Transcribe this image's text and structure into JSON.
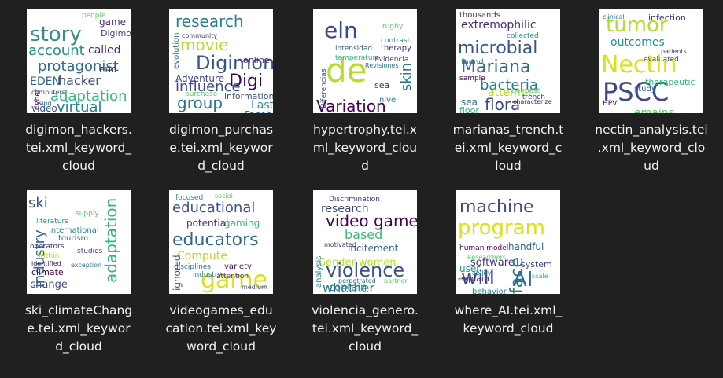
{
  "files": [
    {
      "label": "digimon_hackers.\ntei.xml_keyword_\ncloud",
      "words": [
        {
          "t": "story",
          "s": 26,
          "c": "#3b8a8c",
          "r": 0
        },
        {
          "t": "protagonist",
          "s": 18,
          "c": "#2c6e8e",
          "r": 0
        },
        {
          "t": "account",
          "s": 18,
          "c": "#21918c",
          "r": 0
        },
        {
          "t": "called",
          "s": 14,
          "c": "#482878",
          "r": 0
        },
        {
          "t": "hacker",
          "s": 16,
          "c": "#3e4a89",
          "r": 0
        },
        {
          "t": "EDEN",
          "s": 14,
          "c": "#31688e",
          "r": 0
        },
        {
          "t": "adaptation",
          "s": 18,
          "c": "#35b779",
          "r": 0
        },
        {
          "t": "virtual",
          "s": 18,
          "c": "#26828e",
          "r": 0
        },
        {
          "t": "game",
          "s": 12,
          "c": "#472c7a",
          "r": 0
        },
        {
          "t": "Digimon",
          "s": 11,
          "c": "#3e4989",
          "r": 0
        },
        {
          "t": "end",
          "s": 12,
          "c": "#482475",
          "r": 0
        },
        {
          "t": "video",
          "s": 12,
          "c": "#3b528b",
          "r": 0
        },
        {
          "t": "people",
          "s": 9,
          "c": "#5ec962",
          "r": 0
        },
        {
          "t": "Cyber",
          "s": 9,
          "c": "#440154",
          "r": -90
        },
        {
          "t": "computers",
          "s": 8,
          "c": "#3e4a89",
          "r": 0
        },
        {
          "t": "using",
          "s": 8,
          "c": "#31688e",
          "r": 0
        }
      ]
    },
    {
      "label": "digimon_purchas\ne.tei.xml_keywor\nd_cloud",
      "words": [
        {
          "t": "research",
          "s": 20,
          "c": "#26828e",
          "r": 0
        },
        {
          "t": "movie",
          "s": 20,
          "c": "#b5de2b",
          "r": 0
        },
        {
          "t": "Digimon",
          "s": 24,
          "c": "#3b528b",
          "r": 0
        },
        {
          "t": "Digi",
          "s": 22,
          "c": "#440154",
          "r": 0
        },
        {
          "t": "influence",
          "s": 18,
          "c": "#3e4a89",
          "r": 0
        },
        {
          "t": "group",
          "s": 20,
          "c": "#2a788e",
          "r": 0
        },
        {
          "t": "Adventure",
          "s": 12,
          "c": "#414487",
          "r": 0
        },
        {
          "t": "Last",
          "s": 14,
          "c": "#21918c",
          "r": 0
        },
        {
          "t": "Facebook",
          "s": 12,
          "c": "#31688e",
          "r": 0
        },
        {
          "t": "online",
          "s": 11,
          "c": "#472c7a",
          "r": 0
        },
        {
          "t": "information",
          "s": 11,
          "c": "#3b528b",
          "r": 0
        },
        {
          "t": "evolution",
          "s": 10,
          "c": "#2c728e",
          "r": -90
        },
        {
          "t": "purchase",
          "s": 9,
          "c": "#5ec962",
          "r": 0
        },
        {
          "t": "community",
          "s": 8,
          "c": "#482878",
          "r": 0
        }
      ]
    },
    {
      "label": "hypertrophy.tei.x\nml_keyword_clou\nd",
      "words": [
        {
          "t": "eln",
          "s": 28,
          "c": "#3e4a89",
          "r": 0
        },
        {
          "t": "de",
          "s": 42,
          "c": "#b5de2b",
          "r": 0
        },
        {
          "t": "Variation",
          "s": 20,
          "c": "#440154",
          "r": 0
        },
        {
          "t": "skin",
          "s": 18,
          "c": "#2a788e",
          "r": -90
        },
        {
          "t": "Diferencias",
          "s": 9,
          "c": "#3b528b",
          "r": -90
        },
        {
          "t": "intensidad",
          "s": 9,
          "c": "#31688e",
          "r": 0
        },
        {
          "t": "temperature",
          "s": 9,
          "c": "#35b779",
          "r": 0
        },
        {
          "t": "therapy",
          "s": 10,
          "c": "#472c7a",
          "r": 0
        },
        {
          "t": "contrast",
          "s": 9,
          "c": "#21918c",
          "r": 0
        },
        {
          "t": "Evidencia",
          "s": 9,
          "c": "#3e4989",
          "r": 0
        },
        {
          "t": "rugby",
          "s": 9,
          "c": "#5ec962",
          "r": 0
        },
        {
          "t": "sea",
          "s": 11,
          "c": "#482878",
          "r": 0
        },
        {
          "t": "nivel",
          "s": 10,
          "c": "#26828e",
          "r": 0
        },
        {
          "t": "Revisiones",
          "s": 8,
          "c": "#2c728e",
          "r": 0
        }
      ]
    },
    {
      "label": "marianas_trench.t\nei.xml_keyword_c\nloud",
      "words": [
        {
          "t": "extremophilic",
          "s": 14,
          "c": "#482878",
          "r": 0
        },
        {
          "t": "microbial",
          "s": 22,
          "c": "#3b528b",
          "r": 0
        },
        {
          "t": "Mariana",
          "s": 22,
          "c": "#31688e",
          "r": 0
        },
        {
          "t": "bacteria",
          "s": 18,
          "c": "#2a788e",
          "r": 0
        },
        {
          "t": "flora",
          "s": 20,
          "c": "#3e4a89",
          "r": 0
        },
        {
          "t": "attempt",
          "s": 14,
          "c": "#b5de2b",
          "r": 0
        },
        {
          "t": "thousands",
          "s": 10,
          "c": "#472c7a",
          "r": 0
        },
        {
          "t": "collected",
          "s": 9,
          "c": "#21918c",
          "r": 0
        },
        {
          "t": "found",
          "s": 10,
          "c": "#26828e",
          "r": 0
        },
        {
          "t": "sample",
          "s": 9,
          "c": "#440154",
          "r": 0
        },
        {
          "t": "deepest",
          "s": 9,
          "c": "#5ec962",
          "r": 0
        },
        {
          "t": "trench",
          "s": 9,
          "c": "#3e4989",
          "r": 0
        },
        {
          "t": "sea",
          "s": 12,
          "c": "#2c728e",
          "r": 0
        },
        {
          "t": "floor",
          "s": 11,
          "c": "#35b779",
          "r": 0
        },
        {
          "t": "characterize",
          "s": 8,
          "c": "#482475",
          "r": 0
        }
      ]
    },
    {
      "label": "nectin_analysis.tei\n.xml_keyword_clo\nud",
      "words": [
        {
          "t": "tumor",
          "s": 26,
          "c": "#b5de2b",
          "r": 0
        },
        {
          "t": "infection",
          "s": 11,
          "c": "#472c7a",
          "r": 0
        },
        {
          "t": "outcomes",
          "s": 14,
          "c": "#21918c",
          "r": 0
        },
        {
          "t": "Nectin",
          "s": 30,
          "c": "#d8e219",
          "r": 0
        },
        {
          "t": "PSCC",
          "s": 32,
          "c": "#3e4a89",
          "r": 0
        },
        {
          "t": "therapeutic",
          "s": 11,
          "c": "#35b779",
          "r": 0
        },
        {
          "t": "study",
          "s": 10,
          "c": "#31688e",
          "r": 0
        },
        {
          "t": "emains",
          "s": 14,
          "c": "#5ec962",
          "r": 0
        },
        {
          "t": "HPV",
          "s": 9,
          "c": "#440154",
          "r": 0
        },
        {
          "t": "evaluated",
          "s": 9,
          "c": "#3b528b",
          "r": 0
        },
        {
          "t": "clinical",
          "s": 8,
          "c": "#2c728e",
          "r": 0
        },
        {
          "t": "patients",
          "s": 8,
          "c": "#482878",
          "r": 0
        }
      ]
    },
    {
      "label": "ski_climateChang\ne.tei.xml_keywor\nd_cloud",
      "words": [
        {
          "t": "ski",
          "s": 18,
          "c": "#3b528b",
          "r": 0
        },
        {
          "t": "industry",
          "s": 18,
          "c": "#31688e",
          "r": -90
        },
        {
          "t": "adaptation",
          "s": 20,
          "c": "#35b779",
          "r": -90
        },
        {
          "t": "climate",
          "s": 11,
          "c": "#440154",
          "r": 0
        },
        {
          "t": "change",
          "s": 13,
          "c": "#3e4a89",
          "r": 0
        },
        {
          "t": "international",
          "s": 10,
          "c": "#26828e",
          "r": 0
        },
        {
          "t": "operators",
          "s": 9,
          "c": "#472c7a",
          "r": 0
        },
        {
          "t": "literature",
          "s": 9,
          "c": "#21918c",
          "r": 0
        },
        {
          "t": "tourism",
          "s": 10,
          "c": "#2a788e",
          "r": 0
        },
        {
          "t": "supply",
          "s": 9,
          "c": "#5ec962",
          "r": 0
        },
        {
          "t": "studies",
          "s": 9,
          "c": "#3e4989",
          "r": 0
        },
        {
          "t": "within",
          "s": 9,
          "c": "#b5de2b",
          "r": 0
        },
        {
          "t": "identified",
          "s": 8,
          "c": "#482878",
          "r": 0
        },
        {
          "t": "exception",
          "s": 8,
          "c": "#2c728e",
          "r": 0
        }
      ]
    },
    {
      "label": "videogames_edu\ncation.tei.xml_key\nword_cloud",
      "words": [
        {
          "t": "educational",
          "s": 18,
          "c": "#3b528b",
          "r": 0
        },
        {
          "t": "potential",
          "s": 12,
          "c": "#482878",
          "r": 0
        },
        {
          "t": "gaming",
          "s": 12,
          "c": "#35b779",
          "r": 0
        },
        {
          "t": "educators",
          "s": 22,
          "c": "#31688e",
          "r": 0
        },
        {
          "t": "Compute",
          "s": 14,
          "c": "#b5de2b",
          "r": 0
        },
        {
          "t": "game",
          "s": 30,
          "c": "#d8e219",
          "r": 0
        },
        {
          "t": "ignored",
          "s": 12,
          "c": "#3e4a89",
          "r": -90
        },
        {
          "t": "disciplines",
          "s": 9,
          "c": "#2a788e",
          "r": 0
        },
        {
          "t": "variety",
          "s": 10,
          "c": "#440154",
          "r": 0
        },
        {
          "t": "attention",
          "s": 9,
          "c": "#472c7a",
          "r": 0
        },
        {
          "t": "industry",
          "s": 9,
          "c": "#26828e",
          "r": 0
        },
        {
          "t": "focused",
          "s": 9,
          "c": "#21918c",
          "r": 0
        },
        {
          "t": "social",
          "s": 8,
          "c": "#5ec962",
          "r": 0
        },
        {
          "t": "medium",
          "s": 8,
          "c": "#3e4989",
          "r": 0
        }
      ]
    },
    {
      "label": "violencia_genero.\ntei.xml_keyword_\ncloud",
      "words": [
        {
          "t": "research",
          "s": 14,
          "c": "#3e4a89",
          "r": 0
        },
        {
          "t": "video games",
          "s": 20,
          "c": "#440154",
          "r": 0
        },
        {
          "t": "based",
          "s": 16,
          "c": "#35b779",
          "r": 0
        },
        {
          "t": "incitement",
          "s": 12,
          "c": "#31688e",
          "r": 0
        },
        {
          "t": "Gender women",
          "s": 13,
          "c": "#b5de2b",
          "r": 0
        },
        {
          "t": "violence",
          "s": 24,
          "c": "#3b528b",
          "r": 0
        },
        {
          "t": "contain",
          "s": 13,
          "c": "#21918c",
          "r": 0
        },
        {
          "t": "whether",
          "s": 16,
          "c": "#2a788e",
          "r": 0
        },
        {
          "t": "Discrimination",
          "s": 9,
          "c": "#472c7a",
          "r": 0
        },
        {
          "t": "analysis",
          "s": 10,
          "c": "#26828e",
          "r": -90
        },
        {
          "t": "motivated",
          "s": 8,
          "c": "#482878",
          "r": 0
        },
        {
          "t": "perpetrated",
          "s": 8,
          "c": "#2c728e",
          "r": 0
        },
        {
          "t": "partner",
          "s": 8,
          "c": "#5ec962",
          "r": 0
        }
      ]
    },
    {
      "label": "where_AI.tei.xml_\nkeyword_cloud",
      "words": [
        {
          "t": "machine",
          "s": 22,
          "c": "#3e4a89",
          "r": 0
        },
        {
          "t": "program",
          "s": 26,
          "c": "#d8e219",
          "r": 0
        },
        {
          "t": "human model",
          "s": 9,
          "c": "#440154",
          "r": 0
        },
        {
          "t": "handful",
          "s": 12,
          "c": "#31688e",
          "r": 0
        },
        {
          "t": "software",
          "s": 13,
          "c": "#472c7a",
          "r": 0
        },
        {
          "t": "will",
          "s": 26,
          "c": "#3b528b",
          "r": 0
        },
        {
          "t": "face",
          "s": 22,
          "c": "#2a788e",
          "r": -90
        },
        {
          "t": "AI",
          "s": 26,
          "c": "#31688e",
          "r": 0
        },
        {
          "t": "system",
          "s": 11,
          "c": "#3e4989",
          "r": 0
        },
        {
          "t": "user",
          "s": 12,
          "c": "#21918c",
          "r": 0
        },
        {
          "t": "explain",
          "s": 11,
          "c": "#482878",
          "r": 0
        },
        {
          "t": "behavior",
          "s": 10,
          "c": "#26828e",
          "r": 0
        },
        {
          "t": "Researchers",
          "s": 8,
          "c": "#5ec962",
          "r": 0
        },
        {
          "t": "ability",
          "s": 8,
          "c": "#2c728e",
          "r": 0
        },
        {
          "t": "scale",
          "s": 8,
          "c": "#35b779",
          "r": 0
        }
      ]
    }
  ]
}
